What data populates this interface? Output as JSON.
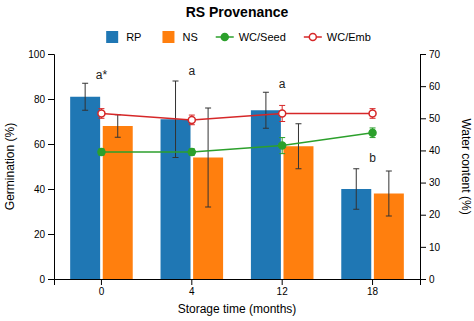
{
  "chart_data": {
    "type": "bar",
    "title": "RS Provenance",
    "xlabel": "Storage time (months)",
    "ylabel": "Germination (%)",
    "y2label": "Water content (%)",
    "categories": [
      "0",
      "4",
      "12",
      "18"
    ],
    "series": [
      {
        "name": "RP",
        "values": [
          81,
          71,
          75,
          40
        ],
        "errors": [
          6,
          17,
          8,
          9
        ]
      },
      {
        "name": "NS",
        "values": [
          68,
          54,
          59,
          38
        ],
        "errors": [
          5,
          22,
          10,
          10
        ]
      },
      {
        "name": "WC/Seed",
        "type": "line",
        "axis": "y2",
        "marker": "filled-circle",
        "values": [
          39.5,
          39.5,
          41.5,
          45.5
        ],
        "errors": [
          1.0,
          1.0,
          2.5,
          1.5
        ]
      },
      {
        "name": "WC/Emb",
        "type": "line",
        "axis": "y2",
        "marker": "open-circle",
        "values": [
          51.5,
          49.5,
          51.5,
          51.5
        ],
        "errors": [
          1.5,
          1.5,
          2.5,
          1.5
        ]
      }
    ],
    "ylim": [
      0,
      100
    ],
    "yticks": [
      0,
      20,
      40,
      60,
      80,
      100
    ],
    "y2lim": [
      0,
      70
    ],
    "y2ticks": [
      0,
      10,
      20,
      30,
      40,
      50,
      60,
      70
    ],
    "annotations": [
      {
        "text": "a*",
        "x": "0",
        "y": 88
      },
      {
        "text": "a",
        "x": "4",
        "y": 90
      },
      {
        "text": "a",
        "x": "12",
        "y": 84
      },
      {
        "text": "b",
        "x": "18",
        "y": 51
      }
    ],
    "legend": "top"
  }
}
